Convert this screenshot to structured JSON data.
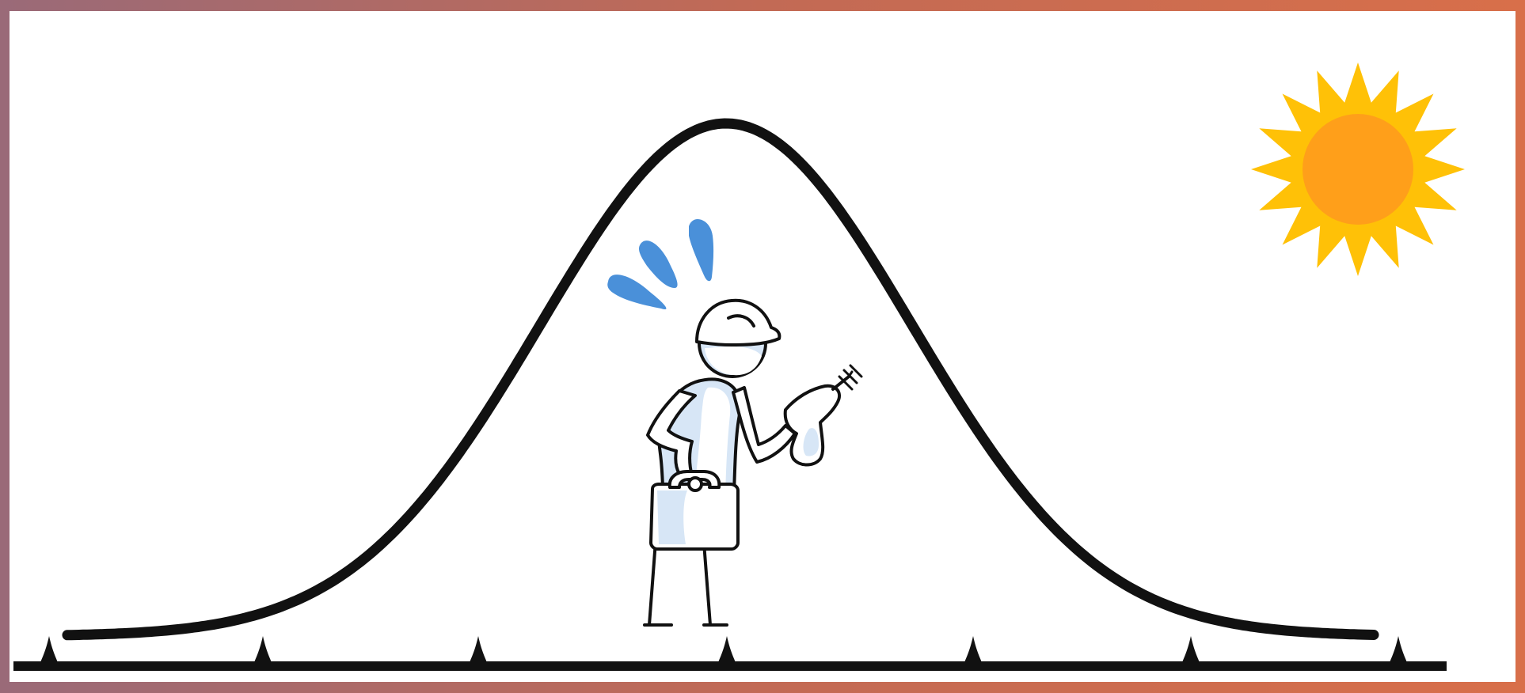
{
  "scene": {
    "colors": {
      "frame_left": "#9a6a78",
      "frame_right": "#d86f4a",
      "background": "#ffffff",
      "ink": "#111111",
      "sweat": "#4a90d9",
      "shade": "#d7e6f6",
      "sun_rays": "#ffc107",
      "sun_core": "#ff9f1a"
    },
    "icons": {
      "curve": "bell-curve-icon",
      "worker": "construction-worker-icon",
      "sun": "sun-icon",
      "drill": "power-drill-icon",
      "toolbox": "toolbox-icon",
      "hardhat": "hard-hat-icon",
      "sweat": "sweat-drops-icon"
    }
  }
}
